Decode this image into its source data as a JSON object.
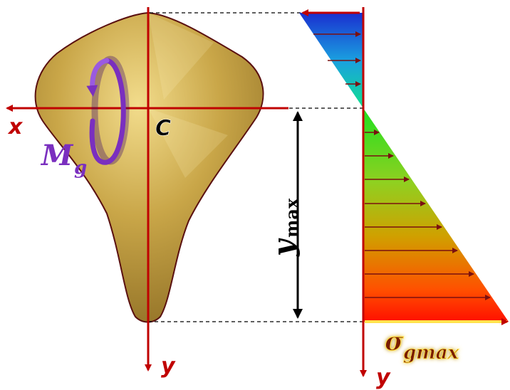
{
  "labels": {
    "x_axis": "x",
    "y_axis_section": "y",
    "y_axis_diagram": "y",
    "centroid": "C",
    "moment_main": "M",
    "moment_sub": "g",
    "ymax_main": "y",
    "ymax_sub": "max",
    "sigma_main": "σ",
    "sigma_sub": "gmax"
  },
  "colors": {
    "axis_red": "#c00000",
    "section_gold": "#b8963a",
    "section_outline": "#5a1010",
    "moment_purple": "#7a2fbf",
    "arrow_dark_red": "#7a1010",
    "ymax_arrow": "#000000",
    "sigma_text": "#7a1a00",
    "sigma_glow": "#ffe34d",
    "compression_top": "#1a2fd0",
    "compression_bottom": "#10e0c0",
    "tension_top": "#20e020",
    "tension_bottom": "#ff1000"
  },
  "icons": {
    "moment_arrow": "curved-rotation-arrow-icon"
  }
}
